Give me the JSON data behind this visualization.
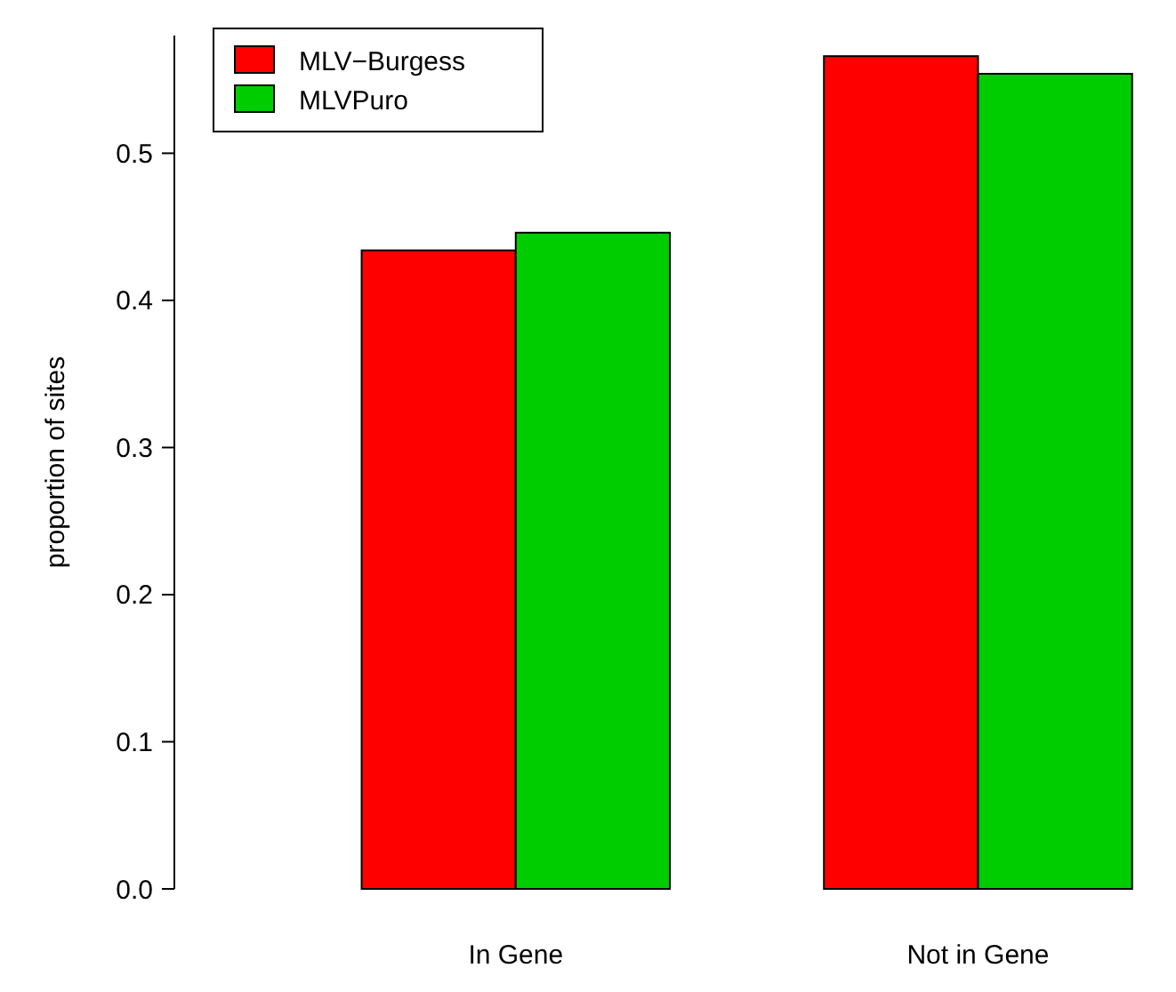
{
  "chart_data": {
    "type": "bar",
    "ylabel": "proportion of sites",
    "categories": [
      "In Gene",
      "Not in Gene"
    ],
    "series": [
      {
        "name": "MLV−Burgess",
        "color": "#ff0000",
        "values": [
          0.434,
          0.566
        ]
      },
      {
        "name": "MLVPuro",
        "color": "#00cd00",
        "values": [
          0.446,
          0.554
        ]
      }
    ],
    "ylim": [
      0,
      0.58
    ],
    "yticks": [
      {
        "value": 0,
        "label": "0.0"
      },
      {
        "value": 0.1,
        "label": "0.1"
      },
      {
        "value": 0.2,
        "label": "0.2"
      },
      {
        "value": 0.3,
        "label": "0.3"
      },
      {
        "value": 0.4,
        "label": "0.4"
      },
      {
        "value": 0.5,
        "label": "0.5"
      }
    ],
    "legend": "top left",
    "grid": false
  }
}
